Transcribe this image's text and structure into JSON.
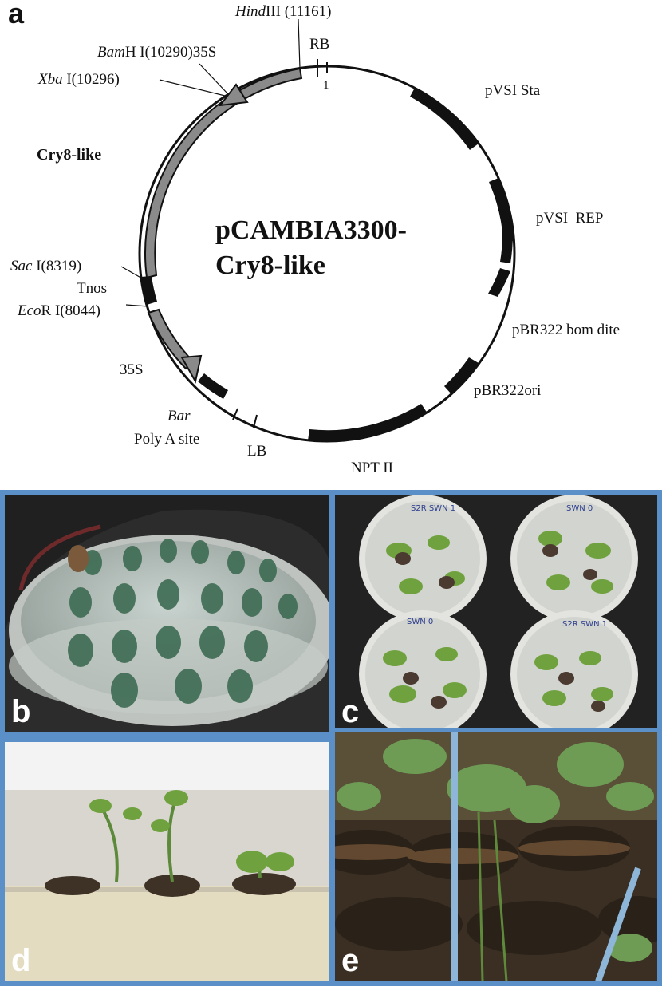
{
  "figure": {
    "panel_a_label": "a",
    "plasmid_name_line1": "pCAMBIA3300-",
    "plasmid_name_line2": "Cry8-like",
    "labels": {
      "hind": "III (11161)",
      "hind_italic": "Hind",
      "rb": "RB",
      "one": "1",
      "bam_italic": "Bam",
      "bam": "H I(10290)35S",
      "xba_italic": "Xba",
      "xba": " I(10296)",
      "cry8": "Cry8-like",
      "sac_italic": "Sac",
      "sac": " I(8319)",
      "tnos": "Tnos",
      "eco_italic": "Eco",
      "eco": "R I(8044)",
      "p35s": "35S",
      "bar": "Bar",
      "polya": "Poly A site",
      "lb": "LB",
      "npt": "NPT II",
      "pvsi_sta": "pVSI Sta",
      "pvsi_rep": "pVSI–REP",
      "pbr_bom": "pBR322 bom dite",
      "pbr_ori": "pBR322ori"
    },
    "photo_panels": {
      "b": "b",
      "c": "c",
      "d": "d",
      "e": "e"
    },
    "dish_labels": {
      "tl": "S2R SWN 1",
      "tr": "SWN 0",
      "bl": "SWN 0",
      "br": "S2R SWN 1"
    },
    "colors": {
      "border": "#5b8fc7",
      "gene_gray": "#8a8a8a",
      "segment_black": "#111111"
    }
  }
}
